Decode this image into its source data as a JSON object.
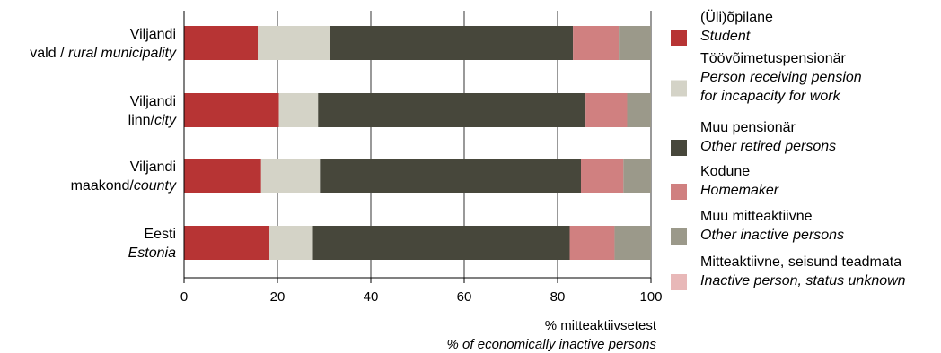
{
  "chart_data": {
    "type": "bar",
    "orientation": "horizontal",
    "stacked": true,
    "categories": [
      {
        "line1": "Viljandi",
        "line2_plain": "vald / ",
        "line2_italic": "rural municipality"
      },
      {
        "line1": "Viljandi",
        "line2_plain": "linn/",
        "line2_italic": "city"
      },
      {
        "line1": "Viljandi",
        "line2_plain": "maakond/",
        "line2_italic": "county"
      },
      {
        "line1": "Eesti",
        "line2_plain": "",
        "line2_italic": "Estonia"
      }
    ],
    "series": [
      {
        "name": "(Üli)õpilane",
        "name_en": "Student",
        "color": "#b73434",
        "values": [
          15.8,
          20.3,
          16.5,
          18.3
        ]
      },
      {
        "name": "Töövõimetuspensionär",
        "name_en": "Person receiving pension",
        "name_en2": "for incapacity for work",
        "color": "#d4d3c7",
        "values": [
          15.5,
          8.4,
          12.6,
          9.3
        ]
      },
      {
        "name": "Muu pensionär",
        "name_en": "Other retired persons",
        "color": "#47473b",
        "values": [
          52.0,
          57.3,
          55.9,
          55.0
        ]
      },
      {
        "name": "Kodune",
        "name_en": "Homemaker",
        "color": "#d08080",
        "values": [
          9.8,
          8.9,
          9.1,
          9.6
        ]
      },
      {
        "name": "Muu mitteaktiivne",
        "name_en": "Other inactive persons",
        "color": "#9b998a",
        "values": [
          6.9,
          5.1,
          5.9,
          7.8
        ]
      },
      {
        "name": "Mitteaktiivne, seisund teadmata",
        "name_en": "Inactive person, status unknown",
        "color": "#e8b8b8",
        "values": [
          0.0,
          0.0,
          0.0,
          0.0
        ]
      }
    ],
    "xlim": [
      0,
      100
    ],
    "xticks": [
      0,
      20,
      40,
      60,
      80,
      100
    ],
    "xlabel": "% mitteaktiivsetest",
    "xlabel_en": "% of economically inactive persons",
    "grid": "vertical",
    "legend": "right"
  }
}
